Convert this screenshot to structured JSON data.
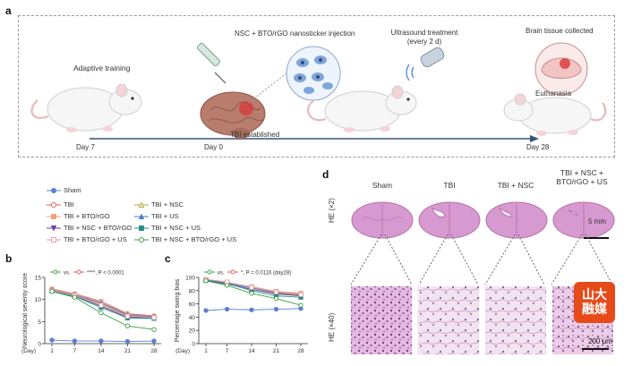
{
  "panel_a": {
    "letter": "a",
    "adaptive_training": "Adaptive training",
    "injection": "NSC + BTO/rGO nanosticker injection",
    "ultrasound": "Ultrasound treatment",
    "ultrasound_freq": "(every 2 d)",
    "brain_collected": "Brain tissue collected",
    "euthanasia": "Euthanasia",
    "tbi_established": "TBI established",
    "day7": "Day 7",
    "day0": "Day 0",
    "day28": "Day 28"
  },
  "legend": {
    "items": [
      {
        "label": "Sham",
        "color": "#5b7fd6",
        "marker": "circle"
      },
      {
        "label": "TBI",
        "color": "#e05a5a",
        "marker": "circle-open"
      },
      {
        "label": "TBI + NSC",
        "color": "#b8a23a",
        "marker": "triangle-open"
      },
      {
        "label": "TBI + BTO/rGO",
        "color": "#f0a07a",
        "marker": "square"
      },
      {
        "label": "TBI + US",
        "color": "#4a7fd0",
        "marker": "triangle"
      },
      {
        "label": "TBI + NSC + BTO/rGO",
        "color": "#6a3fa0",
        "marker": "triangle-down"
      },
      {
        "label": "TBI + NSC + US",
        "color": "#2a8a8a",
        "marker": "square"
      },
      {
        "label": "TBI + BTO/rGO + US",
        "color": "#e59aa8",
        "marker": "square-open"
      },
      {
        "label": "TBI + NSC + BTO/rGO + US",
        "color": "#3aa040",
        "marker": "circle-open"
      }
    ]
  },
  "chart_data": [
    {
      "panel": "b",
      "type": "line",
      "ylabel": "Neurological severity score",
      "xlabel": "(Day)",
      "x": [
        1,
        7,
        14,
        21,
        28
      ],
      "ylim": [
        0,
        15
      ],
      "yticks": [
        0,
        5,
        10,
        15
      ],
      "annotation_vs": "vs.",
      "annotation_p": "****, P < 0.0001",
      "series": [
        {
          "name": "Sham",
          "color": "#5b7fd6",
          "values": [
            0.8,
            0.6,
            0.6,
            0.5,
            0.6
          ]
        },
        {
          "name": "TBI",
          "color": "#e05a5a",
          "values": [
            12.4,
            11.3,
            9.6,
            6.8,
            6.3
          ]
        },
        {
          "name": "TBI + NSC",
          "color": "#b8a23a",
          "values": [
            12.2,
            11.0,
            9.0,
            6.4,
            6.0
          ]
        },
        {
          "name": "TBI + BTO/rGO",
          "color": "#f0a07a",
          "values": [
            12.3,
            11.2,
            9.3,
            6.6,
            6.2
          ]
        },
        {
          "name": "TBI + US",
          "color": "#4a7fd0",
          "values": [
            12.1,
            11.0,
            9.2,
            6.5,
            6.1
          ]
        },
        {
          "name": "TBI + NSC + BTO/rGO",
          "color": "#6a3fa0",
          "values": [
            12.0,
            10.8,
            8.5,
            6.0,
            5.8
          ]
        },
        {
          "name": "TBI + NSC + US",
          "color": "#2a8a8a",
          "values": [
            11.9,
            10.7,
            8.2,
            5.8,
            5.7
          ]
        },
        {
          "name": "TBI + BTO/rGO + US",
          "color": "#e59aa8",
          "values": [
            12.0,
            10.9,
            8.7,
            6.2,
            5.9
          ]
        },
        {
          "name": "TBI + NSC + BTO/rGO + US",
          "color": "#3aa040",
          "values": [
            11.8,
            10.5,
            7.0,
            4.0,
            3.2
          ]
        }
      ]
    },
    {
      "panel": "c",
      "type": "line",
      "ylabel": "Percentage swing bias",
      "xlabel": "(Day)",
      "x": [
        1,
        7,
        14,
        21,
        28
      ],
      "ylim": [
        0,
        100
      ],
      "yticks": [
        0,
        20,
        40,
        60,
        80,
        100
      ],
      "annotation_vs": "vs.",
      "annotation_p": "*, P = 0.0116 (day28)",
      "series": [
        {
          "name": "Sham",
          "color": "#5b7fd6",
          "values": [
            50,
            52,
            51,
            52,
            53
          ]
        },
        {
          "name": "TBI",
          "color": "#e05a5a",
          "values": [
            97,
            93,
            85,
            78,
            75
          ]
        },
        {
          "name": "TBI + NSC",
          "color": "#b8a23a",
          "values": [
            96,
            92,
            84,
            76,
            73
          ]
        },
        {
          "name": "TBI + BTO/rGO",
          "color": "#f0a07a",
          "values": [
            97,
            92,
            86,
            79,
            76
          ]
        },
        {
          "name": "TBI + US",
          "color": "#4a7fd0",
          "values": [
            96,
            91,
            84,
            77,
            74
          ]
        },
        {
          "name": "TBI + NSC + BTO/rGO",
          "color": "#6a3fa0",
          "values": [
            95,
            90,
            82,
            75,
            72
          ]
        },
        {
          "name": "TBI + NSC + US",
          "color": "#2a8a8a",
          "values": [
            96,
            91,
            80,
            72,
            70
          ]
        },
        {
          "name": "TBI + BTO/rGO + US",
          "color": "#e59aa8",
          "values": [
            97,
            93,
            85,
            78,
            74
          ]
        },
        {
          "name": "TBI + NSC + BTO/rGO + US",
          "color": "#3aa040",
          "values": [
            95,
            88,
            76,
            68,
            58
          ]
        }
      ]
    }
  ],
  "panel_b_letter": "b",
  "panel_c_letter": "c",
  "panel_d": {
    "letter": "d",
    "columns": [
      "Sham",
      "TBI",
      "TBI + NSC",
      "TBI + NSC +\nBTO/rGO + US"
    ],
    "row_top_label": "HE (×2)",
    "row_bottom_label": "HE (×40)",
    "scale_top": "5 mm",
    "scale_bottom": "200 μm"
  },
  "watermark": {
    "line1": "山大",
    "line2": "融媒"
  }
}
